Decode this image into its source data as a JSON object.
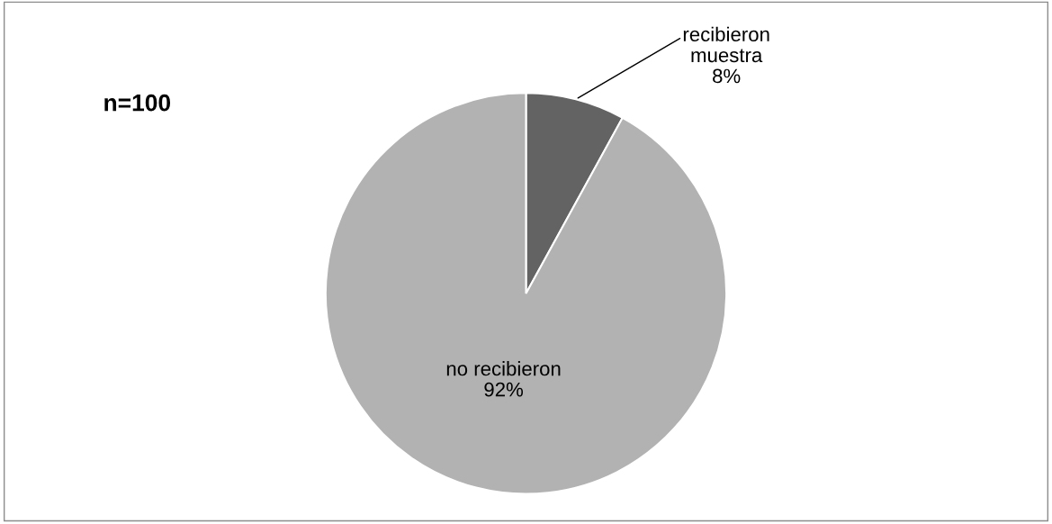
{
  "chart_data": {
    "type": "pie",
    "categories": [
      "recibieron muestra",
      "no recibieron"
    ],
    "values": [
      8,
      92
    ],
    "colors": [
      "#636363",
      "#b2b2b2"
    ],
    "value_labels": [
      "8%",
      "92%"
    ],
    "annotations": [
      "n=100"
    ],
    "legend": false
  }
}
